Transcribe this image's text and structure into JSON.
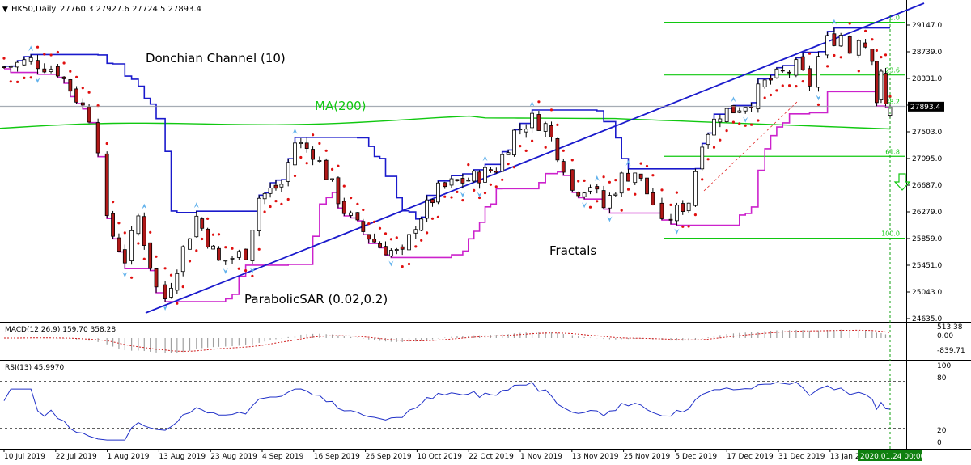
{
  "header": {
    "symbol_label": "HK50,Daily",
    "ohlc_text": "27760.3 27927.6 27724.5 27893.4"
  },
  "colors": {
    "ma": "#10c810",
    "donchian": "#1a1acc",
    "envelope": "#cc22cc",
    "sar": "#e01010",
    "fractal": "#62b2ec",
    "trendline": "#1a1acc",
    "fib": "#10c810",
    "bull_body": "#ffffff",
    "bear_body": "#b01818",
    "rsi_line": "#2030c8",
    "macd_bar": "#a0a0a0",
    "macd_signal": "#d02020",
    "price_tag": "#000000",
    "date_tag": "#108010"
  },
  "annotations": {
    "donchian": "Donchian Channel (10)",
    "ma": "MA(200)",
    "sar": "ParabolicSAR (0.02,0.2)",
    "fractals": "Fractals"
  },
  "price_axis": {
    "ticks": [
      "29147.0",
      "28739.0",
      "28331.0",
      "27911.0",
      "27503.0",
      "27095.0",
      "26687.0",
      "26279.0",
      "25859.0",
      "25451.0",
      "25043.0",
      "24635.0"
    ],
    "current_price": "27893.4"
  },
  "fib_levels": [
    {
      "label": "0.0",
      "value": 29190
    },
    {
      "label": "23.6",
      "value": 28380
    },
    {
      "label": "38.2",
      "value": 27900
    },
    {
      "label": "61.8",
      "value": 27130
    },
    {
      "label": "100.0",
      "value": 25870
    }
  ],
  "macd": {
    "label": "MACD(12,26,9) 159.70 358.28",
    "ticks": [
      "513.38",
      "0.00",
      "-839.71"
    ]
  },
  "rsi": {
    "label": "RSI(13) 45.9970",
    "ticks": [
      "100",
      "80",
      "20",
      "0"
    ]
  },
  "x_axis": {
    "dates": [
      "10 Jul 2019",
      "22 Jul 2019",
      "1 Aug 2019",
      "13 Aug 2019",
      "23 Aug 2019",
      "4 Sep 2019",
      "16 Sep 2019",
      "26 Sep 2019",
      "10 Oct 2019",
      "22 Oct 2019",
      "1 Nov 2019",
      "13 Nov 2019",
      "25 Nov 2019",
      "5 Dec 2019",
      "17 Dec 2019",
      "31 Dec 2019",
      "13 Jan 2020"
    ],
    "current_date": "2020.01.24 00:00"
  },
  "chart_data": {
    "type": "candlestick",
    "title": "HK50,Daily",
    "timeframe": "Daily",
    "ylim": [
      24500,
      29600
    ],
    "close_path": [
      {
        "date": "2019-07-10",
        "close": 28500
      },
      {
        "date": "2019-07-16",
        "close": 28600
      },
      {
        "date": "2019-07-22",
        "close": 28450
      },
      {
        "date": "2019-07-29",
        "close": 27750
      },
      {
        "date": "2019-07-31",
        "close": 27300
      },
      {
        "date": "2019-08-02",
        "close": 26100
      },
      {
        "date": "2019-08-06",
        "close": 25550
      },
      {
        "date": "2019-08-09",
        "close": 26200
      },
      {
        "date": "2019-08-13",
        "close": 25100
      },
      {
        "date": "2019-08-15",
        "close": 24950
      },
      {
        "date": "2019-08-19",
        "close": 25700
      },
      {
        "date": "2019-08-22",
        "close": 26200
      },
      {
        "date": "2019-08-27",
        "close": 25500
      },
      {
        "date": "2019-09-02",
        "close": 25650
      },
      {
        "date": "2019-09-05",
        "close": 26500
      },
      {
        "date": "2019-09-10",
        "close": 26700
      },
      {
        "date": "2019-09-13",
        "close": 27350
      },
      {
        "date": "2019-09-17",
        "close": 27200
      },
      {
        "date": "2019-09-20",
        "close": 26850
      },
      {
        "date": "2019-09-24",
        "close": 26300
      },
      {
        "date": "2019-09-27",
        "close": 26050
      },
      {
        "date": "2019-10-02",
        "close": 25750
      },
      {
        "date": "2019-10-07",
        "close": 25600
      },
      {
        "date": "2019-10-10",
        "close": 26100
      },
      {
        "date": "2019-10-15",
        "close": 26600
      },
      {
        "date": "2019-10-18",
        "close": 26700
      },
      {
        "date": "2019-10-23",
        "close": 26800
      },
      {
        "date": "2019-10-28",
        "close": 26950
      },
      {
        "date": "2019-11-01",
        "close": 27500
      },
      {
        "date": "2019-11-05",
        "close": 27700
      },
      {
        "date": "2019-11-08",
        "close": 27600
      },
      {
        "date": "2019-11-12",
        "close": 27000
      },
      {
        "date": "2019-11-14",
        "close": 26600
      },
      {
        "date": "2019-11-18",
        "close": 26700
      },
      {
        "date": "2019-11-21",
        "close": 26350
      },
      {
        "date": "2019-11-25",
        "close": 26800
      },
      {
        "date": "2019-11-28",
        "close": 26900
      },
      {
        "date": "2019-12-02",
        "close": 26400
      },
      {
        "date": "2019-12-04",
        "close": 26050
      },
      {
        "date": "2019-12-06",
        "close": 26200
      },
      {
        "date": "2019-12-10",
        "close": 26450
      },
      {
        "date": "2019-12-13",
        "close": 27400
      },
      {
        "date": "2019-12-17",
        "close": 27800
      },
      {
        "date": "2019-12-20",
        "close": 27850
      },
      {
        "date": "2019-12-24",
        "close": 28000
      },
      {
        "date": "2019-12-27",
        "close": 28250
      },
      {
        "date": "2019-12-31",
        "close": 28400
      },
      {
        "date": "2020-01-03",
        "close": 28500
      },
      {
        "date": "2020-01-06",
        "close": 28250
      },
      {
        "date": "2020-01-08",
        "close": 28650
      },
      {
        "date": "2020-01-10",
        "close": 28900
      },
      {
        "date": "2020-01-13",
        "close": 29000
      },
      {
        "date": "2020-01-15",
        "close": 28750
      },
      {
        "date": "2020-01-17",
        "close": 29000
      },
      {
        "date": "2020-01-20",
        "close": 28700
      },
      {
        "date": "2020-01-21",
        "close": 28000
      },
      {
        "date": "2020-01-22",
        "close": 28350
      },
      {
        "date": "2020-01-23",
        "close": 27900
      },
      {
        "date": "2020-01-24",
        "close": 27893.4
      }
    ],
    "last_bar": {
      "date": "2020-01-24",
      "open": 27760.3,
      "high": 27927.6,
      "low": 27724.5,
      "close": 27893.4
    }
  }
}
